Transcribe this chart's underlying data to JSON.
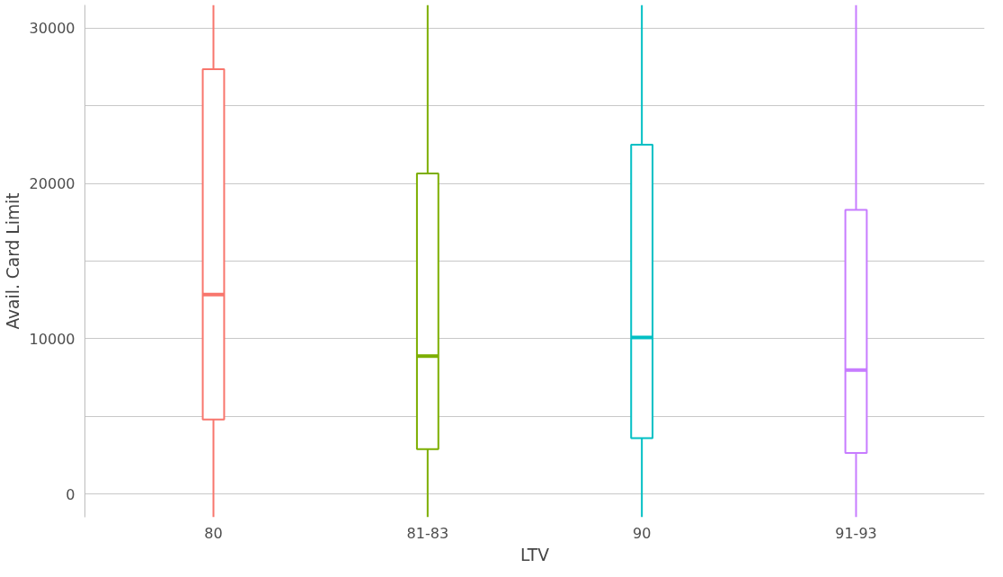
{
  "chart_data": {
    "type": "box",
    "xlabel": "LTV",
    "ylabel": "Avail. Card Limit",
    "categories": [
      "80",
      "81-83",
      "90",
      "91-93"
    ],
    "colors": [
      "#f8766d",
      "#7cae00",
      "#00bfc4",
      "#c77cff"
    ],
    "boxes": [
      {
        "low": -1500,
        "q1": 4800,
        "median": 12840,
        "q3": 27360,
        "high": 31500
      },
      {
        "low": -1500,
        "q1": 2880,
        "median": 8880,
        "q3": 20640,
        "high": 31500
      },
      {
        "low": -1500,
        "q1": 3600,
        "median": 10080,
        "q3": 22500,
        "high": 31500
      },
      {
        "low": -1500,
        "q1": 2640,
        "median": 7980,
        "q3": 18300,
        "high": 31500
      }
    ],
    "ylim": [
      -1500,
      31500
    ],
    "yticks": [
      0,
      {
        "value": 5000,
        "label": null
      },
      10000,
      {
        "value": 15000,
        "label": null
      },
      20000,
      {
        "value": 25000,
        "label": null
      },
      30000
    ],
    "grid": "y"
  }
}
